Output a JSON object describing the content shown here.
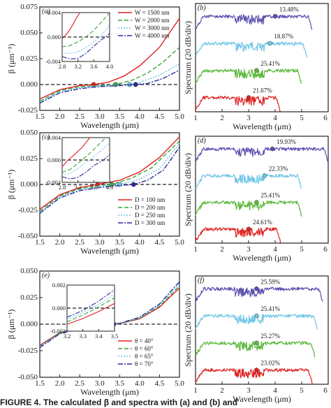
{
  "caption": "FIGURE 4.   The calculated β and spectra with (a) and (b) and",
  "chart_data": [
    {
      "id": "a",
      "type": "line",
      "panel_label": "(a)",
      "ylabel": "β (μm⁻¹)",
      "xlabel": "Wavelength (μm)",
      "xlim": [
        1.5,
        5.0
      ],
      "ylim": [
        -0.025,
        0.075
      ],
      "xticks": [
        "1.5",
        "2.0",
        "2.5",
        "3.0",
        "3.5",
        "4.0",
        "4.5",
        "5.0"
      ],
      "yticks": [
        "-0.025",
        "0.000",
        "0.025",
        "0.050",
        "0.075"
      ],
      "legend_pos": "top-right",
      "series": [
        {
          "name": "W = 1500 nm",
          "color": "#e02020",
          "dash": "",
          "x": [
            1.5,
            2.0,
            2.5,
            2.85,
            3.2,
            3.6,
            4.0,
            4.5,
            5.0
          ],
          "y": [
            -0.014,
            -0.005,
            -0.001,
            0.0,
            0.002,
            0.008,
            0.018,
            0.036,
            0.064
          ]
        },
        {
          "name": "W = 2000 nm",
          "color": "#3aa33a",
          "dash": "6,3",
          "x": [
            1.5,
            2.0,
            2.5,
            3.0,
            3.4,
            3.8,
            4.2,
            4.6,
            5.0
          ],
          "y": [
            -0.016,
            -0.006,
            -0.002,
            -0.001,
            0.0,
            0.004,
            0.011,
            0.022,
            0.036
          ]
        },
        {
          "name": "W = 3000 nm",
          "color": "#6ec6e6",
          "dash": "2,2",
          "x": [
            1.5,
            2.0,
            2.5,
            3.0,
            3.5,
            3.75,
            4.0,
            4.5,
            5.0
          ],
          "y": [
            -0.017,
            -0.007,
            -0.003,
            -0.0015,
            -0.0005,
            0.0,
            0.002,
            0.009,
            0.02
          ]
        },
        {
          "name": "W = 4000 nm",
          "color": "#2a2a9e",
          "dash": "7,2,2,2",
          "x": [
            1.5,
            2.0,
            2.5,
            3.0,
            3.5,
            3.9,
            4.2,
            4.6,
            5.0
          ],
          "y": [
            -0.018,
            -0.008,
            -0.004,
            -0.002,
            -0.001,
            0.0,
            0.001,
            0.006,
            0.014
          ]
        }
      ],
      "inset": {
        "xlim": [
          2.8,
          4.0
        ],
        "ylim": [
          -0.004,
          0.004
        ],
        "xticks": [
          "2.8",
          "3.2",
          "3.6",
          "4.0"
        ],
        "yticks": [
          "-0.004",
          "0.000",
          "0.004"
        ],
        "series": [
          {
            "x": [
              2.8,
              2.85,
              2.95,
              3.05,
              3.15,
              3.25
            ],
            "y": [
              -0.0002,
              0.0,
              0.0008,
              0.0018,
              0.003,
              0.0042
            ]
          },
          {
            "x": [
              2.8,
              3.0,
              3.2,
              3.4,
              3.6,
              3.8,
              4.0
            ],
            "y": [
              -0.0016,
              -0.0014,
              -0.0008,
              0.0,
              0.0011,
              0.0025,
              0.0042
            ]
          },
          {
            "x": [
              2.8,
              3.0,
              3.2,
              3.4,
              3.6,
              3.75,
              3.9,
              4.0
            ],
            "y": [
              -0.0026,
              -0.0027,
              -0.0024,
              -0.0017,
              -0.0008,
              0.0,
              0.0011,
              0.002
            ]
          },
          {
            "x": [
              2.8,
              3.0,
              3.2,
              3.4,
              3.6,
              3.8,
              3.9,
              4.0
            ],
            "y": [
              -0.0032,
              -0.0036,
              -0.0035,
              -0.0027,
              -0.0015,
              -0.0004,
              0.0,
              0.0006
            ]
          }
        ]
      }
    },
    {
      "id": "c",
      "type": "line",
      "panel_label": "(c)",
      "ylabel": "β (μm⁻¹)",
      "xlabel": "Wavelength (μm)",
      "xlim": [
        1.5,
        5.0
      ],
      "ylim": [
        -0.05,
        0.05
      ],
      "xticks": [
        "1.5",
        "2.0",
        "2.5",
        "3.0",
        "3.5",
        "4.0",
        "4.5",
        "5.0"
      ],
      "yticks": [
        "-0.050",
        "-0.025",
        "0.000",
        "0.025",
        "0.050"
      ],
      "legend_pos": "bottom-right",
      "series": [
        {
          "name": "D = 100 nm",
          "color": "#e02020",
          "dash": "",
          "x": [
            1.5,
            2.0,
            2.5,
            2.95,
            3.5,
            4.0,
            4.5,
            5.0
          ],
          "y": [
            -0.024,
            -0.01,
            -0.003,
            0.0,
            0.004,
            0.012,
            0.026,
            0.046
          ]
        },
        {
          "name": "D = 200 nm",
          "color": "#3aa33a",
          "dash": "6,3",
          "x": [
            1.5,
            2.0,
            2.5,
            3.0,
            3.3,
            3.8,
            4.3,
            5.0
          ],
          "y": [
            -0.026,
            -0.011,
            -0.004,
            -0.001,
            0.0,
            0.006,
            0.016,
            0.042
          ]
        },
        {
          "name": "D = 250 nm",
          "color": "#6ec6e6",
          "dash": "2,2",
          "x": [
            1.5,
            2.0,
            2.5,
            3.0,
            3.5,
            4.0,
            4.5,
            5.0
          ],
          "y": [
            -0.027,
            -0.012,
            -0.005,
            -0.002,
            0.0,
            0.005,
            0.015,
            0.04
          ]
        },
        {
          "name": "D = 300 nm",
          "color": "#2a2a9e",
          "dash": "7,2,2,2",
          "x": [
            1.5,
            2.0,
            2.5,
            3.0,
            3.5,
            3.85,
            4.2,
            4.6,
            5.0
          ],
          "y": [
            -0.028,
            -0.013,
            -0.006,
            -0.003,
            -0.001,
            0.0,
            0.004,
            0.014,
            0.036
          ]
        }
      ],
      "inset": {
        "xlim": [
          2.8,
          4.0
        ],
        "ylim": [
          -0.004,
          0.004
        ],
        "xticks": [
          "2.8",
          "3.2",
          "3.6",
          "4.0"
        ],
        "yticks": [
          "-0.004",
          "0.000",
          "0.004"
        ],
        "series": [
          {
            "x": [
              2.8,
              2.9,
              2.95,
              3.1,
              3.3,
              3.5
            ],
            "y": [
              -0.0012,
              -0.0004,
              0.0,
              0.0009,
              0.0022,
              0.004
            ]
          },
          {
            "x": [
              2.8,
              3.0,
              3.2,
              3.3,
              3.5,
              3.7,
              3.9
            ],
            "y": [
              -0.0022,
              -0.0017,
              -0.0006,
              0.0,
              0.0012,
              0.0026,
              0.004
            ]
          },
          {
            "x": [
              2.8,
              3.0,
              3.2,
              3.4,
              3.5,
              3.7,
              4.0
            ],
            "y": [
              -0.0026,
              -0.0024,
              -0.0015,
              -0.0004,
              0.0,
              0.0012,
              0.003
            ]
          },
          {
            "x": [
              2.8,
              3.0,
              3.2,
              3.4,
              3.6,
              3.85,
              4.0
            ],
            "y": [
              -0.003,
              -0.0034,
              -0.0031,
              -0.0022,
              -0.001,
              0.0,
              0.001
            ]
          }
        ]
      }
    },
    {
      "id": "e",
      "type": "line",
      "panel_label": "(e)",
      "ylabel": "β (μm⁻¹)",
      "xlabel": "Wavelength (μm)",
      "xlim": [
        1.5,
        5.0
      ],
      "ylim": [
        -0.05,
        0.05
      ],
      "xticks": [
        "1.5",
        "2.0",
        "2.5",
        "3.0",
        "3.5",
        "4.0",
        "4.5",
        "5.0"
      ],
      "yticks": [
        "-0.050",
        "-0.025",
        "0.000",
        "0.025",
        "0.050"
      ],
      "legend_pos": "bottom-right",
      "series": [
        {
          "name": "θ = 40°",
          "color": "#e02020",
          "dash": "",
          "x": [
            1.5,
            2.0,
            2.5,
            3.0,
            3.35,
            3.5,
            4.0,
            4.5,
            5.0
          ],
          "y": [
            -0.02,
            -0.008,
            -0.003,
            -0.001,
            0.0,
            0.0005,
            0.005,
            0.016,
            0.034
          ]
        },
        {
          "name": "θ = 60°",
          "color": "#3aa33a",
          "dash": "6,3",
          "x": [
            1.5,
            2.0,
            2.5,
            3.0,
            3.35,
            3.5,
            4.0,
            4.5,
            5.0
          ],
          "y": [
            -0.021,
            -0.008,
            -0.003,
            -0.001,
            0.0,
            0.0006,
            0.0055,
            0.017,
            0.036
          ]
        },
        {
          "name": "θ = 65°",
          "color": "#6ec6e6",
          "dash": "2,2",
          "x": [
            1.5,
            2.0,
            2.5,
            3.0,
            3.35,
            3.5,
            4.0,
            4.5,
            5.0
          ],
          "y": [
            -0.021,
            -0.009,
            -0.003,
            -0.001,
            0.0,
            0.0007,
            0.006,
            0.018,
            0.038
          ]
        },
        {
          "name": "θ = 70°",
          "color": "#2a2a9e",
          "dash": "7,2,2,2",
          "x": [
            1.5,
            2.0,
            2.5,
            3.0,
            3.35,
            3.5,
            4.0,
            4.5,
            5.0
          ],
          "y": [
            -0.022,
            -0.009,
            -0.004,
            -0.001,
            0.0,
            0.0008,
            0.0065,
            0.019,
            0.04
          ]
        }
      ],
      "inset": {
        "xlim": [
          3.2,
          3.5
        ],
        "ylim": [
          -0.002,
          0.002
        ],
        "xticks": [
          "3.2",
          "3.3",
          "3.4",
          "3.5"
        ],
        "yticks": [
          "-0.002",
          "0.000",
          "0.002"
        ],
        "series": [
          {
            "x": [
              3.2,
              3.3,
              3.4,
              3.5
            ],
            "y": [
              -0.0014,
              -0.0009,
              -0.0003,
              0.0004
            ]
          },
          {
            "x": [
              3.2,
              3.3,
              3.4,
              3.5
            ],
            "y": [
              -0.0012,
              -0.0006,
              0.0001,
              0.0009
            ]
          },
          {
            "x": [
              3.2,
              3.3,
              3.4,
              3.5
            ],
            "y": [
              -0.001,
              -0.0004,
              0.0003,
              0.0012
            ]
          },
          {
            "x": [
              3.2,
              3.3,
              3.4,
              3.5
            ],
            "y": [
              -0.0008,
              -0.0002,
              0.0006,
              0.0016
            ]
          }
        ]
      }
    },
    {
      "id": "b",
      "type": "line",
      "panel_label": "(b)",
      "ylabel": "Spectrum (20 dB/div)",
      "xlabel": "Wavelength (μm)",
      "xlim": [
        1,
        6
      ],
      "xticks": [
        "1",
        "2",
        "3",
        "4",
        "5",
        "6"
      ],
      "series": [
        {
          "color": "#5a4fb0",
          "label": "13.48%",
          "base": 0.0,
          "end": 5.4,
          "dot": 4.0
        },
        {
          "color": "#6ec6e6",
          "label": "18.87%",
          "base": 1.0,
          "end": 5.2,
          "dot": 3.8
        },
        {
          "color": "#5cb83c",
          "label": "25.41%",
          "base": 2.0,
          "end": 5.0,
          "dot": 3.3
        },
        {
          "color": "#e02020",
          "label": "21.67%",
          "base": 3.0,
          "end": 4.2,
          "dot": 3.0
        }
      ]
    },
    {
      "id": "d",
      "type": "line",
      "panel_label": "(d)",
      "ylabel": "Spectrum (20 dB/div)",
      "xlabel": "Wavelength (μm)",
      "xlim": [
        1,
        6
      ],
      "xticks": [
        "1",
        "2",
        "3",
        "4",
        "5",
        "6"
      ],
      "series": [
        {
          "color": "#5a4fb0",
          "label": "19.93%",
          "base": 0.0,
          "end": 6.0,
          "dot": 3.9
        },
        {
          "color": "#6ec6e6",
          "label": "22.33%",
          "base": 1.0,
          "end": 5.0,
          "dot": 3.6
        },
        {
          "color": "#5cb83c",
          "label": "25.41%",
          "base": 2.0,
          "end": 5.0,
          "dot": 3.3
        },
        {
          "color": "#e02020",
          "label": "24.61%",
          "base": 3.0,
          "end": 4.2,
          "dot": 3.0
        }
      ]
    },
    {
      "id": "f",
      "type": "line",
      "panel_label": "(f)",
      "ylabel": "Spectrum (20 dB/div)",
      "xlabel": "Wavelength (μm)",
      "xlim": [
        1,
        6
      ],
      "xticks": [
        "1",
        "2",
        "3",
        "4",
        "5",
        "6"
      ],
      "series": [
        {
          "color": "#5a4fb0",
          "label": "25.59%",
          "base": 0.0,
          "end": 5.8,
          "dot": 3.3
        },
        {
          "color": "#6ec6e6",
          "label": "25.41%",
          "base": 1.0,
          "end": 5.6,
          "dot": 3.3
        },
        {
          "color": "#5cb83c",
          "label": "25.27%",
          "base": 2.0,
          "end": 5.5,
          "dot": 3.3
        },
        {
          "color": "#e02020",
          "label": "23.02%",
          "base": 3.0,
          "end": 5.4,
          "dot": 3.3
        }
      ]
    }
  ]
}
